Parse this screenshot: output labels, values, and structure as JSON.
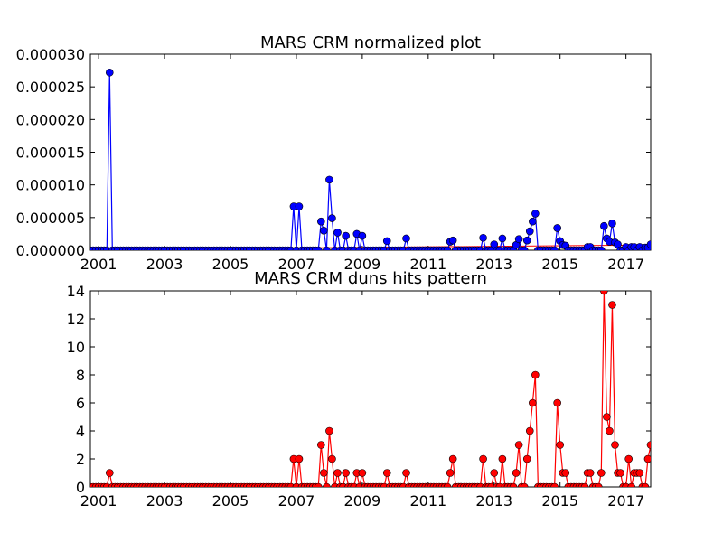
{
  "chart_data": [
    {
      "type": "line",
      "title": "MARS CRM normalized plot",
      "xlabel": "",
      "ylabel": "",
      "xlim": [
        2000.75,
        2017.75
      ],
      "ylim": [
        0,
        3e-05
      ],
      "xticks": [
        2001,
        2003,
        2005,
        2007,
        2009,
        2011,
        2013,
        2015,
        2017
      ],
      "yticks": [
        0,
        5e-06,
        1e-05,
        1.5e-05,
        2e-05,
        2.5e-05,
        3e-05
      ],
      "ytick_labels": [
        "0.000000",
        "0.000005",
        "0.000010",
        "0.000015",
        "0.000020",
        "0.000025",
        "0.000030"
      ],
      "grid": false,
      "colors": {
        "series": "#0000ff",
        "baseline": "#ff0000"
      },
      "baseline": {
        "x": [
          2000.75,
          2017.75
        ],
        "y": [
          1e-07,
          8e-07
        ]
      },
      "series": [
        {
          "marker": "circle",
          "x": [
            2001.33,
            2006.92,
            2007.08,
            2007.75,
            2007.83,
            2008.0,
            2008.08,
            2008.25,
            2008.5,
            2008.83,
            2009.0,
            2009.75,
            2010.33,
            2011.67,
            2011.75,
            2012.67,
            2013.0,
            2013.25,
            2013.67,
            2013.75,
            2014.0,
            2014.08,
            2014.17,
            2014.25,
            2014.92,
            2015.0,
            2015.08,
            2015.17,
            2015.83,
            2015.92,
            2016.33,
            2016.42,
            2016.5,
            2016.58,
            2016.67,
            2016.75,
            2017.0,
            2017.17,
            2017.25,
            2017.42,
            2017.58,
            2017.67,
            2017.75
          ],
          "y": [
            2.72e-05,
            6.7e-06,
            6.7e-06,
            4.4e-06,
            3e-06,
            1.08e-05,
            4.9e-06,
            2.7e-06,
            2.2e-06,
            2.5e-06,
            2.2e-06,
            1.4e-06,
            1.8e-06,
            1.3e-06,
            1.5e-06,
            1.9e-06,
            9e-07,
            1.8e-06,
            8e-07,
            1.7e-06,
            1.5e-06,
            2.9e-06,
            4.4e-06,
            5.6e-06,
            3.4e-06,
            1.4e-06,
            8e-07,
            7e-07,
            5e-07,
            5e-07,
            3.7e-06,
            1.8e-06,
            1.3e-06,
            4.1e-06,
            1.2e-06,
            9e-07,
            5e-07,
            5e-07,
            5e-07,
            5e-07,
            4e-07,
            4e-07,
            9e-07
          ]
        }
      ]
    },
    {
      "type": "line",
      "title": "MARS CRM duns hits pattern",
      "xlabel": "",
      "ylabel": "",
      "xlim": [
        2000.75,
        2017.75
      ],
      "ylim": [
        0,
        14
      ],
      "xticks": [
        2001,
        2003,
        2005,
        2007,
        2009,
        2011,
        2013,
        2015,
        2017
      ],
      "yticks": [
        0,
        2,
        4,
        6,
        8,
        10,
        12,
        14
      ],
      "ytick_labels": [
        "0",
        "2",
        "4",
        "6",
        "8",
        "10",
        "12",
        "14"
      ],
      "grid": false,
      "colors": {
        "series": "#ff0000"
      },
      "series": [
        {
          "marker": "circle",
          "x": [
            2001.33,
            2006.92,
            2007.08,
            2007.75,
            2007.83,
            2008.0,
            2008.08,
            2008.25,
            2008.5,
            2008.83,
            2009.0,
            2009.75,
            2010.33,
            2011.67,
            2011.75,
            2012.67,
            2013.0,
            2013.25,
            2013.67,
            2013.75,
            2014.0,
            2014.08,
            2014.17,
            2014.25,
            2014.92,
            2015.0,
            2015.08,
            2015.17,
            2015.83,
            2015.92,
            2016.25,
            2016.33,
            2016.42,
            2016.5,
            2016.58,
            2016.67,
            2016.75,
            2016.83,
            2017.08,
            2017.25,
            2017.33,
            2017.42,
            2017.67,
            2017.75
          ],
          "y": [
            1,
            2,
            2,
            3,
            1,
            4,
            2,
            1,
            1,
            1,
            1,
            1,
            1,
            1,
            2,
            2,
            1,
            2,
            1,
            3,
            2,
            4,
            6,
            8,
            6,
            3,
            1,
            1,
            1,
            1,
            1,
            14,
            5,
            4,
            13,
            3,
            1,
            1,
            2,
            1,
            1,
            1,
            2,
            3
          ]
        }
      ]
    }
  ]
}
